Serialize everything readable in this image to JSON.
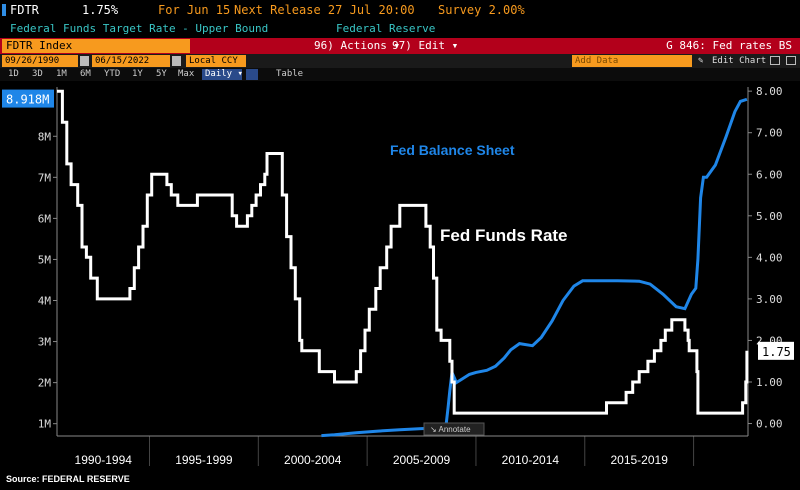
{
  "header": {
    "ticker": "FDTR",
    "value": "1.75%",
    "for_label": "For Jun 15",
    "next_release": "Next Release 27 Jul 20:00",
    "survey": "Survey 2.00%",
    "description": "Federal Funds Target Rate - Upper Bound",
    "source": "Federal Reserve"
  },
  "toolbar": {
    "index_field": "FDTR Index",
    "actions_label": "96) Actions ▾",
    "edit_label": "97) Edit ▾",
    "chart_title": "G 846: Fed rates BS"
  },
  "controls": {
    "start_date": "09/26/1990",
    "end_date": "06/15/2022",
    "currency": "Local CCY",
    "add_data": "Add Data",
    "edit_chart": "Edit Chart",
    "periods": [
      "1D",
      "3D",
      "1M",
      "6M",
      "YTD",
      "1Y",
      "5Y",
      "Max"
    ],
    "frequency": "Daily ▾",
    "table_label": "Table"
  },
  "colors": {
    "balance_sheet": "#1f86e8",
    "funds_rate": "#ffffff",
    "header_red": "#b3001b",
    "orange": "#f79a1e",
    "teal": "#39c6c6"
  },
  "chart_data": {
    "type": "line",
    "annotations": {
      "balance_sheet": "Fed Balance Sheet",
      "funds_rate": "Fed Funds Rate"
    },
    "x_categories": [
      "1990-1994",
      "1995-1999",
      "2000-2004",
      "2005-2009",
      "2010-2014",
      "2015-2019"
    ],
    "left_axis": {
      "ticks": [
        "1M",
        "2M",
        "3M",
        "4M",
        "5M",
        "6M",
        "7M",
        "8M"
      ],
      "min": 0.7,
      "max": 9.2,
      "last_label": "8.918M"
    },
    "right_axis": {
      "ticks": [
        "0.00",
        "1.00",
        "2.00",
        "3.00",
        "4.00",
        "5.00",
        "6.00",
        "7.00",
        "8.00"
      ],
      "min": -0.3,
      "max": 8.1,
      "last_label": "1.75"
    },
    "x_range": [
      1990.75,
      2022.5
    ],
    "series": [
      {
        "name": "Fed Balance Sheet",
        "axis": "left",
        "points": [
          [
            2002.9,
            0.71
          ],
          [
            2003.5,
            0.73
          ],
          [
            2004.5,
            0.78
          ],
          [
            2005.5,
            0.82
          ],
          [
            2006.5,
            0.85
          ],
          [
            2007.5,
            0.88
          ],
          [
            2008.5,
            0.9
          ],
          [
            2008.62,
            0.93
          ],
          [
            2008.72,
            1.4
          ],
          [
            2008.8,
            1.8
          ],
          [
            2008.9,
            2.25
          ],
          [
            2009.1,
            2.0
          ],
          [
            2009.4,
            2.1
          ],
          [
            2009.7,
            2.2
          ],
          [
            2010.0,
            2.25
          ],
          [
            2010.5,
            2.3
          ],
          [
            2010.9,
            2.4
          ],
          [
            2011.3,
            2.6
          ],
          [
            2011.6,
            2.8
          ],
          [
            2012.0,
            2.95
          ],
          [
            2012.6,
            2.9
          ],
          [
            2013.0,
            3.1
          ],
          [
            2013.5,
            3.5
          ],
          [
            2014.0,
            4.0
          ],
          [
            2014.5,
            4.35
          ],
          [
            2014.9,
            4.48
          ],
          [
            2015.5,
            4.48
          ],
          [
            2016.5,
            4.48
          ],
          [
            2017.5,
            4.47
          ],
          [
            2018.0,
            4.4
          ],
          [
            2018.6,
            4.15
          ],
          [
            2019.2,
            3.85
          ],
          [
            2019.6,
            3.8
          ],
          [
            2019.9,
            4.15
          ],
          [
            2020.1,
            4.3
          ],
          [
            2020.2,
            5.0
          ],
          [
            2020.32,
            6.5
          ],
          [
            2020.45,
            7.0
          ],
          [
            2020.6,
            7.0
          ],
          [
            2021.0,
            7.3
          ],
          [
            2021.5,
            8.0
          ],
          [
            2021.9,
            8.6
          ],
          [
            2022.15,
            8.85
          ],
          [
            2022.45,
            8.9
          ]
        ]
      },
      {
        "name": "Fed Funds Rate",
        "axis": "right",
        "points": [
          [
            1990.75,
            8.0
          ],
          [
            1991.0,
            7.25
          ],
          [
            1991.2,
            6.25
          ],
          [
            1991.4,
            5.75
          ],
          [
            1991.7,
            5.25
          ],
          [
            1991.9,
            4.25
          ],
          [
            1992.1,
            4.0
          ],
          [
            1992.3,
            3.5
          ],
          [
            1992.6,
            3.0
          ],
          [
            1993.0,
            3.0
          ],
          [
            1993.8,
            3.0
          ],
          [
            1994.1,
            3.25
          ],
          [
            1994.3,
            3.75
          ],
          [
            1994.5,
            4.25
          ],
          [
            1994.7,
            4.75
          ],
          [
            1994.9,
            5.5
          ],
          [
            1995.1,
            6.0
          ],
          [
            1995.5,
            6.0
          ],
          [
            1995.8,
            5.75
          ],
          [
            1996.0,
            5.5
          ],
          [
            1996.3,
            5.25
          ],
          [
            1997.2,
            5.5
          ],
          [
            1998.5,
            5.5
          ],
          [
            1998.8,
            5.0
          ],
          [
            1999.0,
            4.75
          ],
          [
            1999.5,
            5.0
          ],
          [
            1999.7,
            5.25
          ],
          [
            1999.9,
            5.5
          ],
          [
            2000.1,
            5.75
          ],
          [
            2000.3,
            6.0
          ],
          [
            2000.4,
            6.5
          ],
          [
            2001.0,
            6.5
          ],
          [
            2001.1,
            5.5
          ],
          [
            2001.3,
            4.5
          ],
          [
            2001.5,
            3.75
          ],
          [
            2001.7,
            3.0
          ],
          [
            2001.9,
            2.0
          ],
          [
            2002.0,
            1.75
          ],
          [
            2002.8,
            1.25
          ],
          [
            2003.5,
            1.0
          ],
          [
            2004.4,
            1.0
          ],
          [
            2004.5,
            1.25
          ],
          [
            2004.7,
            1.75
          ],
          [
            2004.9,
            2.25
          ],
          [
            2005.1,
            2.75
          ],
          [
            2005.4,
            3.25
          ],
          [
            2005.6,
            3.75
          ],
          [
            2005.9,
            4.25
          ],
          [
            2006.1,
            4.75
          ],
          [
            2006.5,
            5.25
          ],
          [
            2007.6,
            5.25
          ],
          [
            2007.7,
            4.75
          ],
          [
            2007.9,
            4.25
          ],
          [
            2008.05,
            3.5
          ],
          [
            2008.2,
            2.25
          ],
          [
            2008.4,
            2.0
          ],
          [
            2008.8,
            1.5
          ],
          [
            2008.9,
            1.0
          ],
          [
            2009.0,
            0.25
          ],
          [
            2015.9,
            0.25
          ],
          [
            2016.0,
            0.5
          ],
          [
            2016.9,
            0.75
          ],
          [
            2017.2,
            1.0
          ],
          [
            2017.5,
            1.25
          ],
          [
            2017.9,
            1.5
          ],
          [
            2018.2,
            1.75
          ],
          [
            2018.5,
            2.0
          ],
          [
            2018.7,
            2.25
          ],
          [
            2019.0,
            2.5
          ],
          [
            2019.5,
            2.5
          ],
          [
            2019.6,
            2.25
          ],
          [
            2019.75,
            2.0
          ],
          [
            2019.8,
            1.75
          ],
          [
            2020.15,
            1.25
          ],
          [
            2020.2,
            0.25
          ],
          [
            2022.2,
            0.25
          ],
          [
            2022.25,
            0.5
          ],
          [
            2022.4,
            1.0
          ],
          [
            2022.45,
            1.75
          ]
        ]
      }
    ]
  },
  "footer": {
    "source": "Source: FEDERAL RESERVE"
  },
  "annotate_label": "Annotate"
}
